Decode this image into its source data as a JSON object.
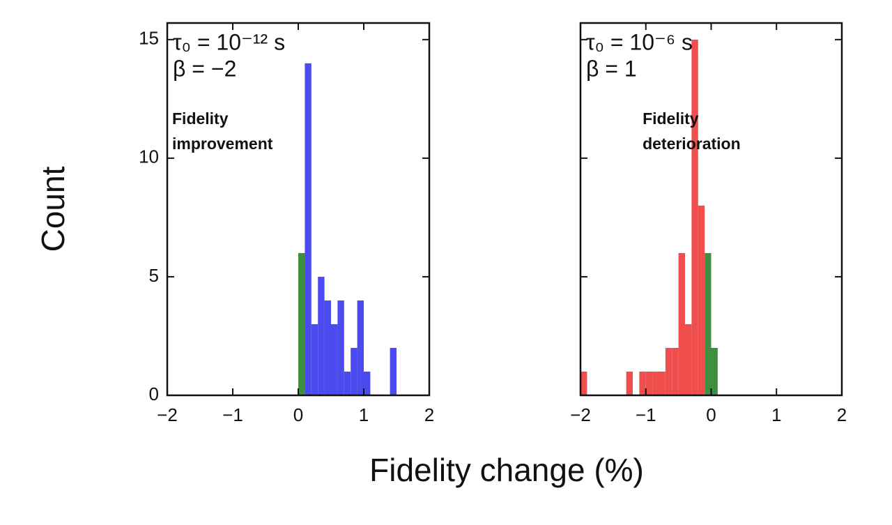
{
  "xlabel": "Fidelity change (%)",
  "ylabel": "Count",
  "chart_data": [
    {
      "type": "histogram",
      "params": [
        "τ₀ = 10⁻¹² s",
        "β = −2"
      ],
      "note": {
        "lines": [
          "Fidelity",
          "improvement"
        ],
        "color": "#4b4bef"
      },
      "bins": [
        0,
        0.1,
        0.2,
        0.3,
        0.4,
        0.5,
        0.6,
        0.7,
        0.8,
        0.9,
        1.0,
        1.1,
        1.2,
        1.3,
        1.4,
        1.5
      ],
      "values": [
        6,
        14,
        3,
        5,
        4,
        3,
        4,
        1,
        2,
        4,
        1,
        0,
        0,
        0,
        2
      ],
      "colors": [
        "#3f8f3f",
        "#4b4bef",
        "#4b4bef",
        "#4b4bef",
        "#4b4bef",
        "#4b4bef",
        "#4b4bef",
        "#4b4bef",
        "#4b4bef",
        "#4b4bef",
        "#4b4bef",
        "#4b4bef",
        "#4b4bef",
        "#4b4bef",
        "#4b4bef"
      ],
      "xlim": [
        -2,
        2
      ],
      "ylim": [
        0,
        15.7
      ],
      "xticks": [
        {
          "value": -2,
          "label": "−2"
        },
        {
          "value": -1,
          "label": "−1"
        },
        0,
        1,
        2
      ],
      "yticks": [
        0,
        5,
        10,
        15
      ],
      "show_ytick_labels": true
    },
    {
      "type": "histogram",
      "params": [
        "τ₀ = 10⁻⁶ s",
        "β = 1"
      ],
      "note": {
        "lines": [
          "Fidelity",
          "deterioration"
        ],
        "color": "#f04d4d"
      },
      "bins": [
        -2,
        -1.9,
        -1.8,
        -1.7,
        -1.6,
        -1.5,
        -1.4,
        -1.3,
        -1.2,
        -1.1,
        -1.0,
        -0.9,
        -0.8,
        -0.7,
        -0.6,
        -0.5,
        -0.4,
        -0.3,
        -0.2,
        -0.1,
        0,
        0.1
      ],
      "values": [
        1,
        0,
        0,
        0,
        0,
        0,
        0,
        1,
        0,
        1,
        1,
        1,
        1,
        2,
        2,
        6,
        3,
        15,
        8,
        6,
        2
      ],
      "colors": [
        "#f04d4d",
        "#f04d4d",
        "#f04d4d",
        "#f04d4d",
        "#f04d4d",
        "#f04d4d",
        "#f04d4d",
        "#f04d4d",
        "#f04d4d",
        "#f04d4d",
        "#f04d4d",
        "#f04d4d",
        "#f04d4d",
        "#f04d4d",
        "#f04d4d",
        "#f04d4d",
        "#f04d4d",
        "#f04d4d",
        "#f04d4d",
        "#3f8f3f",
        "#3f8f3f"
      ],
      "xlim": [
        -2,
        2
      ],
      "ylim": [
        0,
        15.7
      ],
      "xticks": [
        {
          "value": -2,
          "label": "−2"
        },
        {
          "value": -1,
          "label": "−1"
        },
        0,
        1,
        2
      ],
      "yticks": [
        0,
        5,
        10,
        15
      ],
      "show_ytick_labels": false
    }
  ]
}
